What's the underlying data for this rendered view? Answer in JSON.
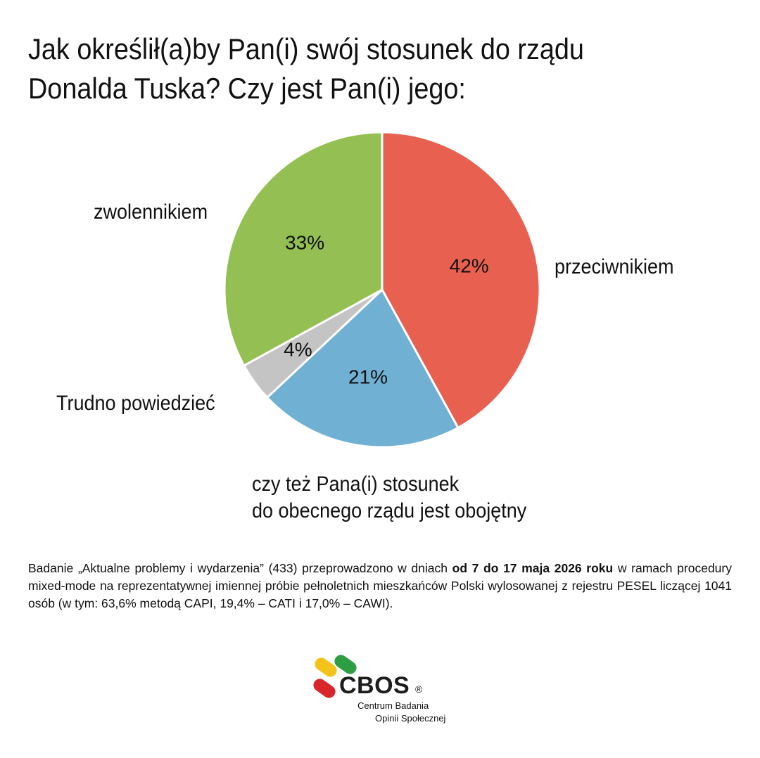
{
  "title_lines": [
    "Jak określił(a)by Pan(i) swój stosunek do rządu",
    "Donalda Tuska? Czy jest Pan(i) jego:"
  ],
  "chart_data": {
    "type": "pie",
    "title": "Jak określił(a)by Pan(i) swój stosunek do rządu Donalda Tuska? Czy jest Pan(i) jego:",
    "slices": [
      {
        "label": "przeciwnikiem",
        "value": 42,
        "value_label": "42%",
        "color": "#e8604f"
      },
      {
        "label": "czy też Pana(i) stosunek do obecnego rządu jest obojętny",
        "value": 21,
        "value_label": "21%",
        "color": "#6fb0d3"
      },
      {
        "label": "Trudno powiedzieć",
        "value": 4,
        "value_label": "4%",
        "color": "#c4c4c4"
      },
      {
        "label": "zwolennikiem",
        "value": 33,
        "value_label": "33%",
        "color": "#94bf52"
      }
    ]
  },
  "labels": {
    "przeciwnikiem": "przeciwnikiem",
    "obojetny_line1": "czy też Pana(i) stosunek",
    "obojetny_line2": "do obecnego rządu jest obojętny",
    "trudno": "Trudno powiedzieć",
    "zwolennikiem": "zwolennikiem"
  },
  "note": {
    "part1": "Badanie „Aktualne problemy i wydarzenia” (433) przeprowadzono w dniach ",
    "bold": "od 7 do 17 maja 2026 roku",
    "part2": " w ramach procedury mixed-mode na reprezentatywnej imiennej próbie pełnoletnich mieszkańców Polski wylosowanej z rejestru PESEL liczącej 1041 osób (w tym: 63,6% metodą CAPI, 19,4% – CATI i 17,0% – CAWI)."
  },
  "logo": {
    "brand": "CBOS",
    "reg": "®",
    "line1": "Centrum Badania",
    "line2": "Opinii Społecznej",
    "colors": [
      "#f2c318",
      "#2e9e45",
      "#d9262b"
    ]
  }
}
